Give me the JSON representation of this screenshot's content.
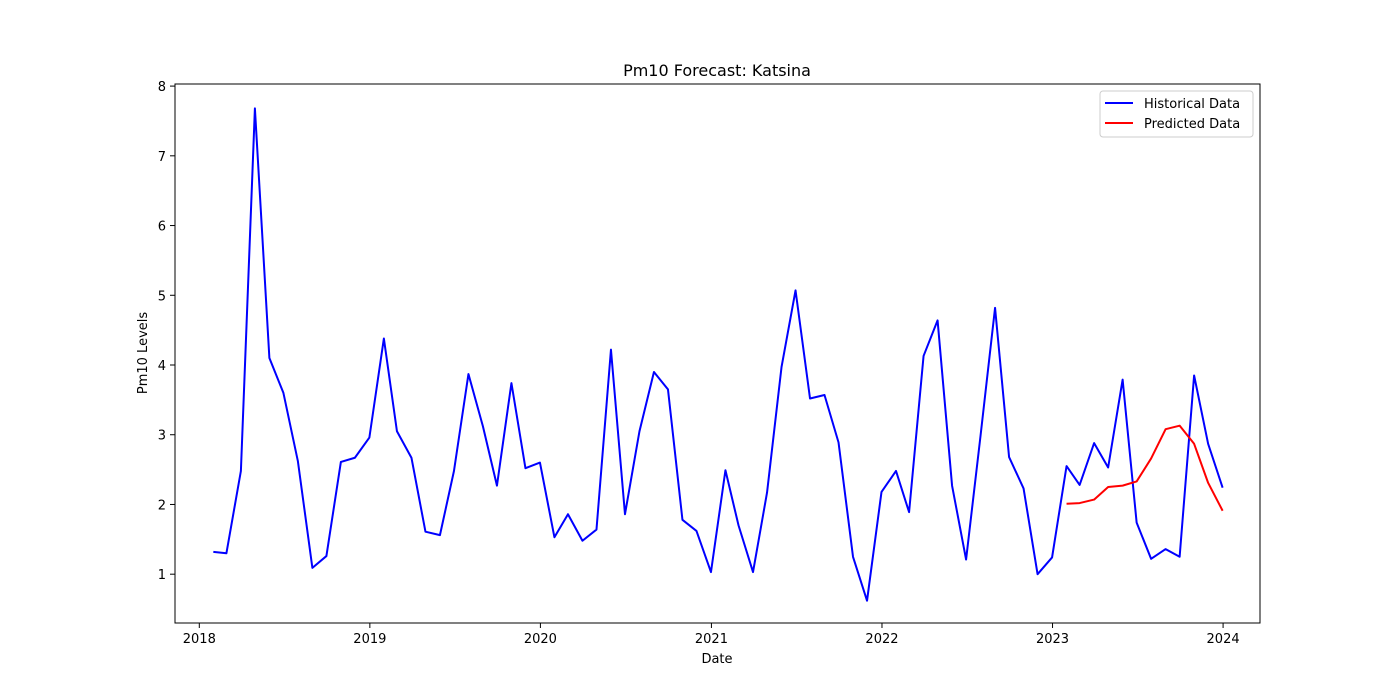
{
  "chart_data": {
    "type": "line",
    "title": "Pm10 Forecast: Katsina",
    "xlabel": "Date",
    "ylabel": "Pm10 Levels",
    "xlim": [
      "2017-11-10",
      "2024-03-20"
    ],
    "ylim": [
      0.3,
      8.03
    ],
    "x_ticks": [
      {
        "date": "2018-01-01",
        "label": "2018"
      },
      {
        "date": "2019-01-01",
        "label": "2019"
      },
      {
        "date": "2020-01-01",
        "label": "2020"
      },
      {
        "date": "2021-01-01",
        "label": "2021"
      },
      {
        "date": "2022-01-01",
        "label": "2022"
      },
      {
        "date": "2023-01-01",
        "label": "2023"
      },
      {
        "date": "2024-01-01",
        "label": "2024"
      }
    ],
    "y_ticks": [
      1,
      2,
      3,
      4,
      5,
      6,
      7,
      8
    ],
    "grid": false,
    "legend": "top-right",
    "series": [
      {
        "name": "Historical Data",
        "color": "#0000ff",
        "points": [
          [
            "2018-01-31",
            1.32
          ],
          [
            "2018-02-28",
            1.3
          ],
          [
            "2018-03-31",
            2.48
          ],
          [
            "2018-04-30",
            7.68
          ],
          [
            "2018-05-31",
            4.1
          ],
          [
            "2018-06-30",
            3.6
          ],
          [
            "2018-07-31",
            2.62
          ],
          [
            "2018-08-31",
            1.09
          ],
          [
            "2018-09-30",
            1.26
          ],
          [
            "2018-10-31",
            2.61
          ],
          [
            "2018-11-30",
            2.67
          ],
          [
            "2018-12-31",
            2.96
          ],
          [
            "2019-01-31",
            4.38
          ],
          [
            "2019-02-28",
            3.05
          ],
          [
            "2019-03-31",
            2.67
          ],
          [
            "2019-04-30",
            1.61
          ],
          [
            "2019-05-31",
            1.56
          ],
          [
            "2019-06-30",
            2.48
          ],
          [
            "2019-07-31",
            3.87
          ],
          [
            "2019-08-31",
            3.12
          ],
          [
            "2019-09-30",
            2.27
          ],
          [
            "2019-10-31",
            3.74
          ],
          [
            "2019-11-30",
            2.52
          ],
          [
            "2019-12-31",
            2.6
          ],
          [
            "2020-01-31",
            1.53
          ],
          [
            "2020-02-29",
            1.86
          ],
          [
            "2020-03-31",
            1.48
          ],
          [
            "2020-04-30",
            1.64
          ],
          [
            "2020-05-31",
            4.22
          ],
          [
            "2020-06-30",
            1.86
          ],
          [
            "2020-07-31",
            3.05
          ],
          [
            "2020-08-31",
            3.9
          ],
          [
            "2020-09-30",
            3.65
          ],
          [
            "2020-10-31",
            1.78
          ],
          [
            "2020-11-30",
            1.62
          ],
          [
            "2020-12-31",
            1.03
          ],
          [
            "2021-01-31",
            2.49
          ],
          [
            "2021-02-28",
            1.7
          ],
          [
            "2021-03-31",
            1.03
          ],
          [
            "2021-04-30",
            2.17
          ],
          [
            "2021-05-31",
            3.97
          ],
          [
            "2021-06-30",
            5.07
          ],
          [
            "2021-07-31",
            3.52
          ],
          [
            "2021-08-31",
            3.57
          ],
          [
            "2021-09-30",
            2.89
          ],
          [
            "2021-10-31",
            1.25
          ],
          [
            "2021-11-30",
            0.62
          ],
          [
            "2021-12-31",
            2.18
          ],
          [
            "2022-01-31",
            2.48
          ],
          [
            "2022-02-28",
            1.89
          ],
          [
            "2022-03-31",
            4.13
          ],
          [
            "2022-04-30",
            4.64
          ],
          [
            "2022-05-31",
            2.27
          ],
          [
            "2022-06-30",
            1.21
          ],
          [
            "2022-07-31",
            2.99
          ],
          [
            "2022-08-31",
            4.82
          ],
          [
            "2022-09-30",
            2.68
          ],
          [
            "2022-10-31",
            2.23
          ],
          [
            "2022-11-30",
            1.0
          ],
          [
            "2022-12-31",
            1.24
          ],
          [
            "2023-01-31",
            2.55
          ],
          [
            "2023-02-28",
            2.28
          ],
          [
            "2023-03-31",
            2.88
          ],
          [
            "2023-04-30",
            2.53
          ],
          [
            "2023-05-31",
            3.79
          ],
          [
            "2023-06-30",
            1.74
          ],
          [
            "2023-07-31",
            1.22
          ],
          [
            "2023-08-31",
            1.36
          ],
          [
            "2023-09-30",
            1.25
          ],
          [
            "2023-10-31",
            3.85
          ],
          [
            "2023-11-30",
            2.87
          ],
          [
            "2023-12-31",
            2.24
          ]
        ]
      },
      {
        "name": "Predicted Data",
        "color": "#ff0000",
        "points": [
          [
            "2023-01-31",
            2.01
          ],
          [
            "2023-02-28",
            2.02
          ],
          [
            "2023-03-31",
            2.07
          ],
          [
            "2023-04-30",
            2.25
          ],
          [
            "2023-05-31",
            2.27
          ],
          [
            "2023-06-30",
            2.33
          ],
          [
            "2023-07-31",
            2.66
          ],
          [
            "2023-08-31",
            3.08
          ],
          [
            "2023-09-30",
            3.13
          ],
          [
            "2023-10-31",
            2.87
          ],
          [
            "2023-11-30",
            2.31
          ],
          [
            "2023-12-31",
            1.91
          ]
        ]
      }
    ]
  }
}
